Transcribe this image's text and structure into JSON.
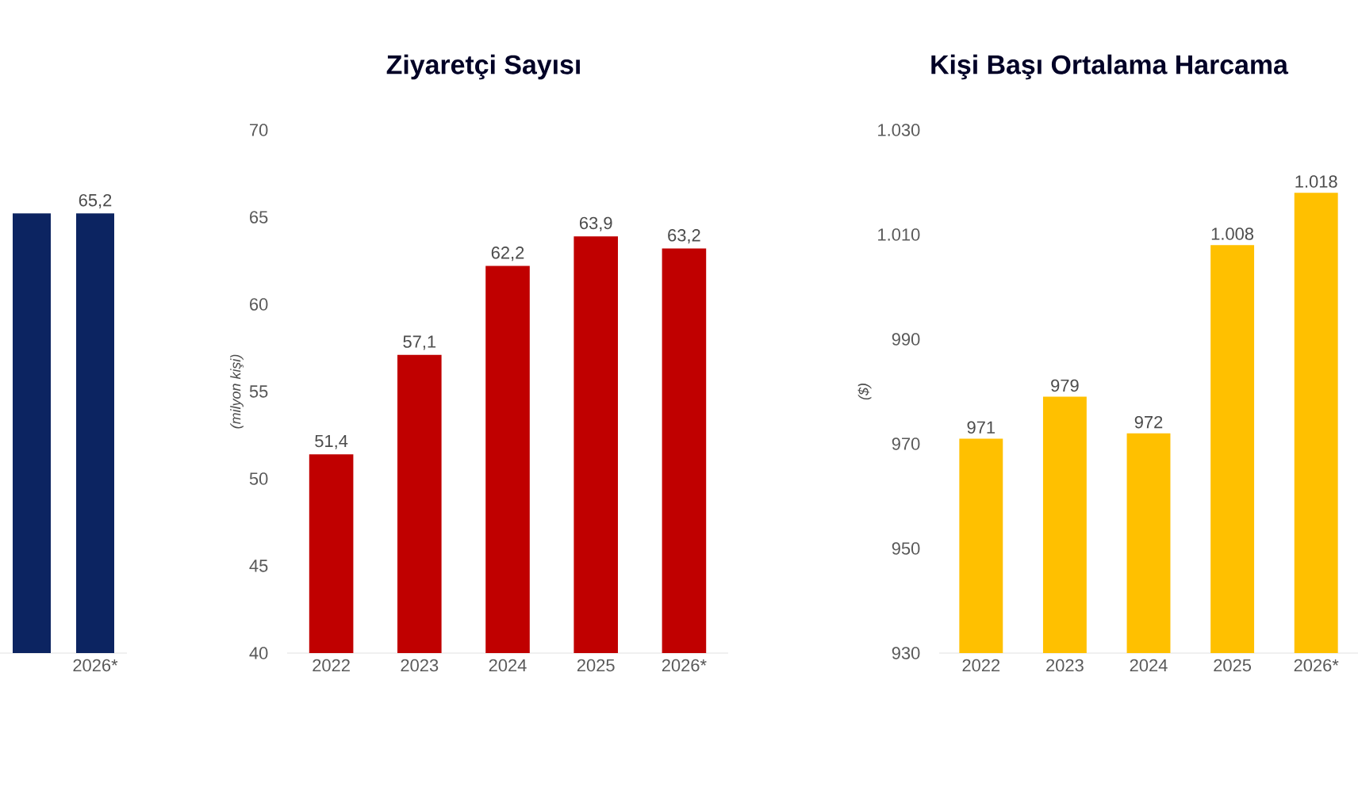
{
  "chart_data": [
    {
      "type": "bar",
      "categories": [
        null,
        "2026*"
      ],
      "values": [
        65.2,
        65.2
      ],
      "value_labels": [
        null,
        "65,2"
      ],
      "color": "#0c2461"
    },
    {
      "type": "bar",
      "title": "Ziyaretçi Sayısı",
      "ylabel": "*(milyon kişi)*",
      "categories": [
        "2022",
        "2023",
        "2024",
        "2025",
        "2026*"
      ],
      "values": [
        51.4,
        57.1,
        62.2,
        63.9,
        63.2
      ],
      "value_labels": [
        "51,4",
        "57,1",
        "62,2",
        "63,9",
        "63,2"
      ],
      "color": "#c00000",
      "ylim": [
        40,
        70
      ],
      "yticks": [
        40,
        45,
        50,
        55,
        60,
        65,
        70
      ]
    },
    {
      "type": "bar",
      "title": "Kişi Başı Ortalama Harcama",
      "ylabel": "*($)*",
      "categories": [
        "2022",
        "2023",
        "2024",
        "2025",
        "2026*"
      ],
      "values": [
        971,
        979,
        972,
        1008,
        1018
      ],
      "value_labels": [
        "971",
        "979",
        "972",
        "1.008",
        "1.018"
      ],
      "color": "#ffc000",
      "ylim": [
        930,
        1030
      ],
      "yticks": [
        930,
        950,
        970,
        990,
        {
          "value": 1010,
          "label": "1.010"
        },
        {
          "value": 1030,
          "label": "1.030"
        }
      ]
    }
  ]
}
